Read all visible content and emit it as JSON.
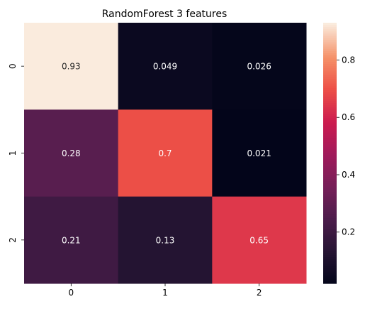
{
  "chart_data": {
    "type": "heatmap",
    "title": "RandomForest 3 features",
    "xlabel": "",
    "ylabel": "",
    "x_categories": [
      "0",
      "1",
      "2"
    ],
    "y_categories": [
      "0",
      "1",
      "2"
    ],
    "values": [
      [
        0.93,
        0.049,
        0.026
      ],
      [
        0.28,
        0.7,
        0.021
      ],
      [
        0.21,
        0.13,
        0.65
      ]
    ],
    "cell_labels": [
      [
        "0.93",
        "0.049",
        "0.026"
      ],
      [
        "0.28",
        "0.7",
        "0.021"
      ],
      [
        "0.21",
        "0.13",
        "0.65"
      ]
    ],
    "colorbar": {
      "range": [
        0.021,
        0.93
      ],
      "ticks": [
        0.2,
        0.4,
        0.6,
        0.8
      ],
      "tick_labels": [
        "0.2",
        "0.4",
        "0.6",
        "0.8"
      ]
    },
    "colormap": "rocket",
    "grid": false,
    "legend": "colorbar-right"
  }
}
